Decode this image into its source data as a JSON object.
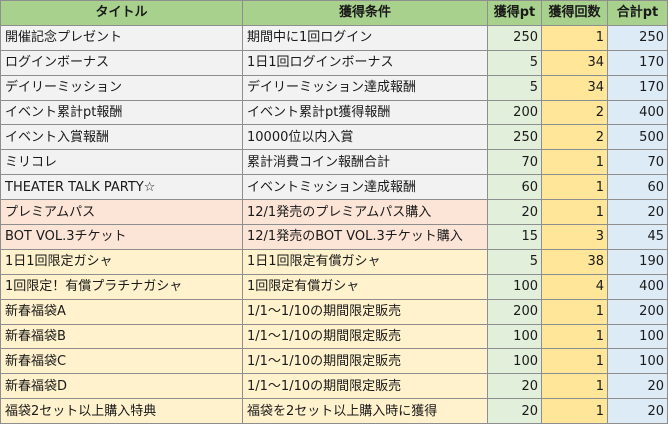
{
  "headers": {
    "title": "タイトル",
    "condition": "獲得条件",
    "pt": "獲得pt",
    "count": "獲得回数",
    "total": "合計pt"
  },
  "rows": [
    {
      "title": "開催記念プレゼント",
      "condition": "期間中に1回ログイン",
      "pt": "250",
      "count": "1",
      "total": "250",
      "group": "gray"
    },
    {
      "title": "ログインボーナス",
      "condition": "1日1回ログインボーナス",
      "pt": "5",
      "count": "34",
      "total": "170",
      "group": "gray"
    },
    {
      "title": "デイリーミッション",
      "condition": "デイリーミッション達成報酬",
      "pt": "5",
      "count": "34",
      "total": "170",
      "group": "gray"
    },
    {
      "title": "イベント累計pt報酬",
      "condition": "イベント累計pt獲得報酬",
      "pt": "200",
      "count": "2",
      "total": "400",
      "group": "gray"
    },
    {
      "title": "イベント入賞報酬",
      "condition": "10000位以内入賞",
      "pt": "250",
      "count": "2",
      "total": "500",
      "group": "gray"
    },
    {
      "title": "ミリコレ",
      "condition": "累計消費コイン報酬合計",
      "pt": "70",
      "count": "1",
      "total": "70",
      "group": "gray"
    },
    {
      "title": "THEATER TALK PARTY☆",
      "condition": "イベントミッション達成報酬",
      "pt": "60",
      "count": "1",
      "total": "60",
      "group": "gray"
    },
    {
      "title": "プレミアムパス",
      "condition": "12/1発売のプレミアムパス購入",
      "pt": "20",
      "count": "1",
      "total": "20",
      "group": "pink"
    },
    {
      "title": "BOT VOL.3チケット",
      "condition": "12/1発売のBOT VOL.3チケット購入",
      "pt": "15",
      "count": "3",
      "total": "45",
      "group": "pink"
    },
    {
      "title": "1日1回限定ガシャ",
      "condition": "1日1回限定有償ガシャ",
      "pt": "5",
      "count": "38",
      "total": "190",
      "group": "yellow"
    },
    {
      "title": "1回限定！有償プラチナガシャ",
      "condition": "1回限定有償ガシャ",
      "pt": "100",
      "count": "4",
      "total": "400",
      "group": "yellow"
    },
    {
      "title": "新春福袋A",
      "condition": "1/1～1/10の期間限定販売",
      "pt": "200",
      "count": "1",
      "total": "200",
      "group": "yellow"
    },
    {
      "title": "新春福袋B",
      "condition": "1/1～1/10の期間限定販売",
      "pt": "100",
      "count": "1",
      "total": "100",
      "group": "yellow"
    },
    {
      "title": "新春福袋C",
      "condition": "1/1～1/10の期間限定販売",
      "pt": "100",
      "count": "1",
      "total": "100",
      "group": "yellow"
    },
    {
      "title": "新春福袋D",
      "condition": "1/1～1/10の期間限定販売",
      "pt": "20",
      "count": "1",
      "total": "20",
      "group": "yellow"
    },
    {
      "title": "福袋2セット以上購入特典",
      "condition": "福袋を2セット以上購入時に獲得",
      "pt": "20",
      "count": "1",
      "total": "20",
      "group": "yellow"
    }
  ],
  "colors": {
    "header": "#a9d18e",
    "pt_column": "#e2efda",
    "count_column": "#ffe699",
    "total_column": "#ddebf7",
    "gray_group": "#f2f2f2",
    "pink_group": "#fce4d6",
    "yellow_group": "#fff2cc"
  }
}
